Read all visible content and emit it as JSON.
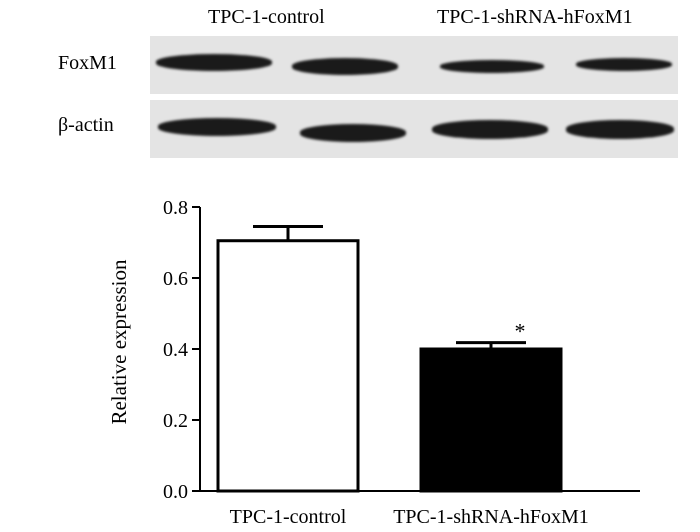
{
  "blot": {
    "lanes": [
      "TPC-1-control",
      "TPC-1-shRNA-hFoxM1"
    ],
    "rows": [
      {
        "label": "FoxM1",
        "intensity": [
          1.0,
          0.95,
          0.75,
          0.7
        ]
      },
      {
        "label": "β-actin",
        "intensity": [
          1.0,
          1.0,
          1.0,
          1.0
        ]
      }
    ]
  },
  "chart_data": {
    "type": "bar",
    "categories": [
      "TPC-1-control",
      "TPC-1-shRNA-hFoxM1"
    ],
    "values": [
      0.705,
      0.4
    ],
    "errors": [
      0.04,
      0.018
    ],
    "colors": [
      "#ffffff",
      "#000000"
    ],
    "annotations": [
      "",
      "*"
    ],
    "title": "",
    "xlabel": "",
    "ylabel": "Relative expression",
    "ylim": [
      0.0,
      0.8
    ],
    "yticks": [
      "0.0",
      "0.2",
      "0.4",
      "0.6",
      "0.8"
    ],
    "grid": false
  }
}
